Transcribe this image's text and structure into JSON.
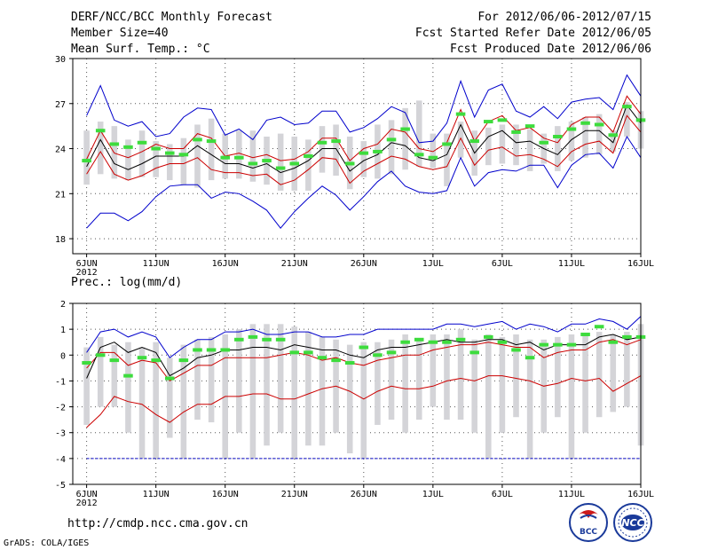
{
  "header": {
    "title": "DERF/NCC/BCC Monthly Forecast",
    "member_size": "Member Size=40",
    "variable": "Mean Surf. Temp.: °C",
    "period": "For 2012/06/06-2012/07/15",
    "start_date": "Fcst Started Refer Date 2012/06/05",
    "produced_date": "Fcst Produced Date 2012/06/06"
  },
  "footer": {
    "url": "http://cmdp.ncc.cma.gov.cn",
    "credit": "GrADS: COLA/IGES",
    "logo_bcc": "BCC",
    "logo_ncc": "NCC"
  },
  "colors": {
    "envelope": "#0000cc",
    "percentile": "#cc0000",
    "mean": "#000000",
    "box": "#d4d4d8",
    "median": "#3ddc3d",
    "grid": "#555555"
  },
  "chart_data": [
    {
      "type": "box",
      "title": "Mean Surf. Temp.: °C",
      "xlabel": "",
      "ylabel": "",
      "xlim": [
        0,
        41
      ],
      "ylim": [
        17,
        30
      ],
      "yticks": [
        18,
        21,
        24,
        27,
        30
      ],
      "xticks": [
        {
          "day": 1,
          "label": "6JUN",
          "sub": "2012"
        },
        {
          "day": 6,
          "label": "11JUN"
        },
        {
          "day": 11,
          "label": "16JUN"
        },
        {
          "day": 16,
          "label": "21JUN"
        },
        {
          "day": 21,
          "label": "26JUN"
        },
        {
          "day": 26,
          "label": "1JUL"
        },
        {
          "day": 31,
          "label": "6JUL"
        },
        {
          "day": 36,
          "label": "11JUL"
        },
        {
          "day": 41,
          "label": "16JUL"
        }
      ],
      "envelope_max": [
        26.2,
        28.2,
        25.9,
        25.5,
        25.8,
        24.8,
        25.0,
        26.1,
        26.7,
        26.6,
        24.9,
        25.3,
        24.6,
        25.9,
        26.1,
        25.6,
        25.7,
        26.5,
        26.5,
        25.1,
        25.4,
        26.0,
        26.8,
        26.4,
        24.4,
        24.5,
        25.7,
        28.5,
        26.1,
        27.9,
        28.3,
        26.5,
        26.1,
        26.8,
        26.0,
        27.1,
        27.3,
        27.4,
        26.6,
        28.9,
        27.5
      ],
      "envelope_min": [
        18.7,
        19.7,
        19.7,
        19.2,
        19.8,
        20.8,
        21.5,
        21.6,
        21.6,
        20.7,
        21.1,
        21.0,
        20.5,
        19.9,
        18.7,
        19.8,
        20.7,
        21.5,
        20.9,
        19.9,
        20.8,
        21.8,
        22.5,
        21.5,
        21.1,
        21.0,
        21.2,
        23.4,
        21.5,
        22.4,
        22.6,
        22.5,
        22.9,
        22.9,
        21.4,
        22.9,
        23.6,
        23.7,
        22.7,
        24.8,
        23.4
      ],
      "p_upper": [
        23.3,
        25.2,
        23.7,
        23.4,
        23.8,
        24.3,
        24.0,
        24.0,
        25.0,
        24.7,
        23.5,
        23.7,
        23.4,
        23.6,
        23.2,
        23.3,
        23.8,
        24.7,
        24.7,
        23.2,
        24.0,
        24.3,
        25.3,
        25.1,
        24.0,
        23.8,
        24.4,
        26.6,
        24.5,
        25.8,
        26.2,
        25.2,
        25.4,
        24.7,
        24.4,
        25.6,
        26.1,
        26.1,
        25.1,
        27.5,
        26.3
      ],
      "p_lower": [
        22.3,
        23.8,
        22.3,
        21.9,
        22.2,
        22.7,
        23.0,
        23.0,
        23.4,
        22.6,
        22.4,
        22.4,
        22.2,
        22.3,
        21.6,
        21.9,
        22.6,
        23.4,
        23.3,
        21.7,
        22.5,
        23.0,
        23.5,
        23.3,
        22.8,
        22.6,
        22.8,
        24.7,
        22.9,
        23.9,
        24.1,
        23.5,
        23.6,
        23.3,
        22.8,
        23.8,
        24.3,
        24.5,
        23.7,
        26.2,
        25.1
      ],
      "mean": [
        22.8,
        24.6,
        23.0,
        22.6,
        23.0,
        23.5,
        23.5,
        23.5,
        24.2,
        23.6,
        23.0,
        23.0,
        22.7,
        23.0,
        22.4,
        22.7,
        23.2,
        24.0,
        24.0,
        22.5,
        23.2,
        23.6,
        24.4,
        24.2,
        23.4,
        23.2,
        23.6,
        25.6,
        23.7,
        24.8,
        25.2,
        24.4,
        24.5,
        24.0,
        23.6,
        24.6,
        25.2,
        25.2,
        24.4,
        26.9,
        25.7
      ],
      "box_high": [
        25.2,
        25.8,
        25.5,
        24.6,
        25.2,
        24.5,
        24.3,
        24.7,
        25.6,
        26.0,
        25.0,
        25.2,
        25.2,
        24.8,
        25.0,
        24.8,
        24.6,
        25.5,
        25.6,
        24.8,
        24.5,
        25.6,
        25.9,
        26.7,
        27.2,
        25.0,
        25.0,
        25.8,
        25.2,
        25.4,
        25.6,
        25.6,
        25.3,
        25.0,
        25.5,
        25.8,
        26.1,
        26.3,
        25.2,
        27.1,
        26.5
      ],
      "box_low": [
        21.6,
        22.3,
        22.0,
        21.9,
        22.1,
        22.1,
        21.9,
        21.6,
        21.4,
        21.9,
        22.0,
        22.0,
        21.8,
        21.6,
        21.2,
        21.2,
        21.2,
        22.4,
        22.2,
        21.3,
        22.1,
        22.0,
        22.3,
        22.6,
        22.8,
        22.7,
        21.5,
        23.4,
        22.2,
        22.9,
        23.0,
        22.9,
        22.5,
        23.0,
        22.5,
        23.2,
        23.4,
        23.6,
        23.8,
        24.8,
        24.0
      ],
      "median": [
        23.2,
        25.2,
        24.3,
        24.1,
        24.4,
        24.0,
        23.7,
        23.6,
        24.6,
        24.5,
        23.4,
        23.4,
        23.0,
        23.2,
        22.7,
        23.0,
        23.5,
        24.4,
        24.5,
        23.0,
        23.7,
        23.8,
        24.6,
        25.3,
        23.6,
        23.4,
        24.3,
        26.3,
        24.5,
        25.8,
        25.9,
        25.1,
        25.5,
        24.4,
        24.8,
        25.3,
        25.7,
        25.6,
        24.9,
        26.8,
        25.9
      ]
    },
    {
      "type": "box",
      "title": "Prec.: log(mm/d)",
      "xlabel": "",
      "ylabel": "",
      "xlim": [
        0,
        41
      ],
      "ylim": [
        -5,
        2
      ],
      "yticks": [
        -5,
        -4,
        -3,
        -2,
        -1,
        0,
        1,
        2
      ],
      "xticks": [
        {
          "day": 1,
          "label": "6JUN",
          "sub": "2012"
        },
        {
          "day": 6,
          "label": "11JUN"
        },
        {
          "day": 11,
          "label": "16JUN"
        },
        {
          "day": 16,
          "label": "21JUN"
        },
        {
          "day": 21,
          "label": "26JUN"
        },
        {
          "day": 26,
          "label": "1JUL"
        },
        {
          "day": 31,
          "label": "6JUL"
        },
        {
          "day": 36,
          "label": "11JUL"
        },
        {
          "day": 41,
          "label": "16JUL"
        }
      ],
      "envelope_max": [
        0.1,
        0.9,
        1.0,
        0.7,
        0.9,
        0.7,
        -0.1,
        0.3,
        0.6,
        0.6,
        0.9,
        0.9,
        1.0,
        0.8,
        0.8,
        0.9,
        0.9,
        0.7,
        0.7,
        0.8,
        0.8,
        1.0,
        1.0,
        1.0,
        1.0,
        1.0,
        1.2,
        1.2,
        1.1,
        1.2,
        1.3,
        1.0,
        1.2,
        1.1,
        0.9,
        1.2,
        1.2,
        1.4,
        1.3,
        1.0,
        1.5
      ],
      "envelope_min": [
        -4.0,
        -4.0,
        -4.0,
        -4.0,
        -4.0,
        -4.0,
        -4.0,
        -4.0,
        -4.0,
        -4.0,
        -4.0,
        -4.0,
        -4.0,
        -4.0,
        -4.0,
        -4.0,
        -4.0,
        -4.0,
        -4.0,
        -4.0,
        -4.0,
        -4.0,
        -4.0,
        -4.0,
        -4.0,
        -4.0,
        -4.0,
        -4.0,
        -4.0,
        -4.0,
        -4.0,
        -4.0,
        -4.0,
        -4.0,
        -4.0,
        -4.0,
        -4.0,
        -4.0,
        -4.0,
        -4.0,
        -4.0
      ],
      "p_upper": [
        -0.5,
        0.1,
        0.1,
        -0.4,
        -0.2,
        -0.3,
        -1.0,
        -0.7,
        -0.4,
        -0.4,
        -0.1,
        -0.1,
        -0.1,
        -0.1,
        0.0,
        0.1,
        0.0,
        -0.2,
        -0.1,
        -0.3,
        -0.4,
        -0.2,
        -0.1,
        0.0,
        0.0,
        0.2,
        0.3,
        0.4,
        0.4,
        0.5,
        0.4,
        0.3,
        0.3,
        -0.1,
        0.1,
        0.2,
        0.2,
        0.5,
        0.6,
        0.4,
        0.6
      ],
      "p_lower": [
        -2.8,
        -2.3,
        -1.6,
        -1.8,
        -1.9,
        -2.3,
        -2.6,
        -2.2,
        -1.9,
        -1.9,
        -1.6,
        -1.6,
        -1.5,
        -1.5,
        -1.7,
        -1.7,
        -1.5,
        -1.3,
        -1.2,
        -1.4,
        -1.7,
        -1.4,
        -1.2,
        -1.3,
        -1.3,
        -1.2,
        -1.0,
        -0.9,
        -1.0,
        -0.8,
        -0.8,
        -0.9,
        -1.0,
        -1.2,
        -1.1,
        -0.9,
        -1.0,
        -0.9,
        -1.4,
        -1.1,
        -0.8
      ],
      "mean": [
        -0.9,
        0.3,
        0.5,
        0.1,
        0.3,
        0.1,
        -0.8,
        -0.5,
        -0.1,
        0.0,
        0.2,
        0.2,
        0.3,
        0.3,
        0.2,
        0.4,
        0.3,
        0.2,
        0.2,
        0.0,
        -0.1,
        0.2,
        0.3,
        0.3,
        0.4,
        0.5,
        0.6,
        0.5,
        0.5,
        0.6,
        0.6,
        0.4,
        0.5,
        0.2,
        0.4,
        0.4,
        0.4,
        0.7,
        0.8,
        0.6,
        0.7
      ],
      "box_high": [
        0.3,
        0.7,
        0.4,
        0.5,
        0.3,
        0.5,
        -0.1,
        0.4,
        0.6,
        0.7,
        0.8,
        1.0,
        1.2,
        1.2,
        1.2,
        1.1,
        0.9,
        0.7,
        0.6,
        0.4,
        0.5,
        0.5,
        0.6,
        0.8,
        0.6,
        0.8,
        0.8,
        1.0,
        0.6,
        0.8,
        0.7,
        0.8,
        0.6,
        0.6,
        0.7,
        0.8,
        0.8,
        0.9,
        0.8,
        0.9,
        1.2
      ],
      "box_low": [
        -2.7,
        -2.0,
        -2.0,
        -3.0,
        -4.0,
        -4.0,
        -3.2,
        -4.0,
        -2.5,
        -2.6,
        -4.0,
        -3.0,
        -4.0,
        -3.5,
        -3.0,
        -4.0,
        -3.5,
        -3.5,
        -3.0,
        -3.8,
        -4.0,
        -2.7,
        -2.5,
        -3.0,
        -2.5,
        -2.0,
        -2.5,
        -2.5,
        -3.0,
        -4.0,
        -3.0,
        -2.4,
        -4.0,
        -3.0,
        -2.4,
        -4.0,
        -3.0,
        -2.4,
        -2.2,
        -2.0,
        -3.5
      ],
      "median": [
        -0.3,
        0.0,
        -0.2,
        -0.8,
        -0.1,
        -0.2,
        -0.9,
        -0.2,
        0.2,
        0.2,
        0.2,
        0.6,
        0.7,
        0.6,
        0.6,
        0.1,
        0.1,
        -0.1,
        -0.2,
        -0.3,
        0.3,
        0.0,
        0.1,
        0.5,
        0.6,
        0.5,
        0.5,
        0.6,
        0.1,
        0.7,
        0.5,
        0.2,
        -0.1,
        0.4,
        0.4,
        0.4,
        0.8,
        1.1,
        0.5,
        0.7,
        0.7
      ]
    }
  ]
}
